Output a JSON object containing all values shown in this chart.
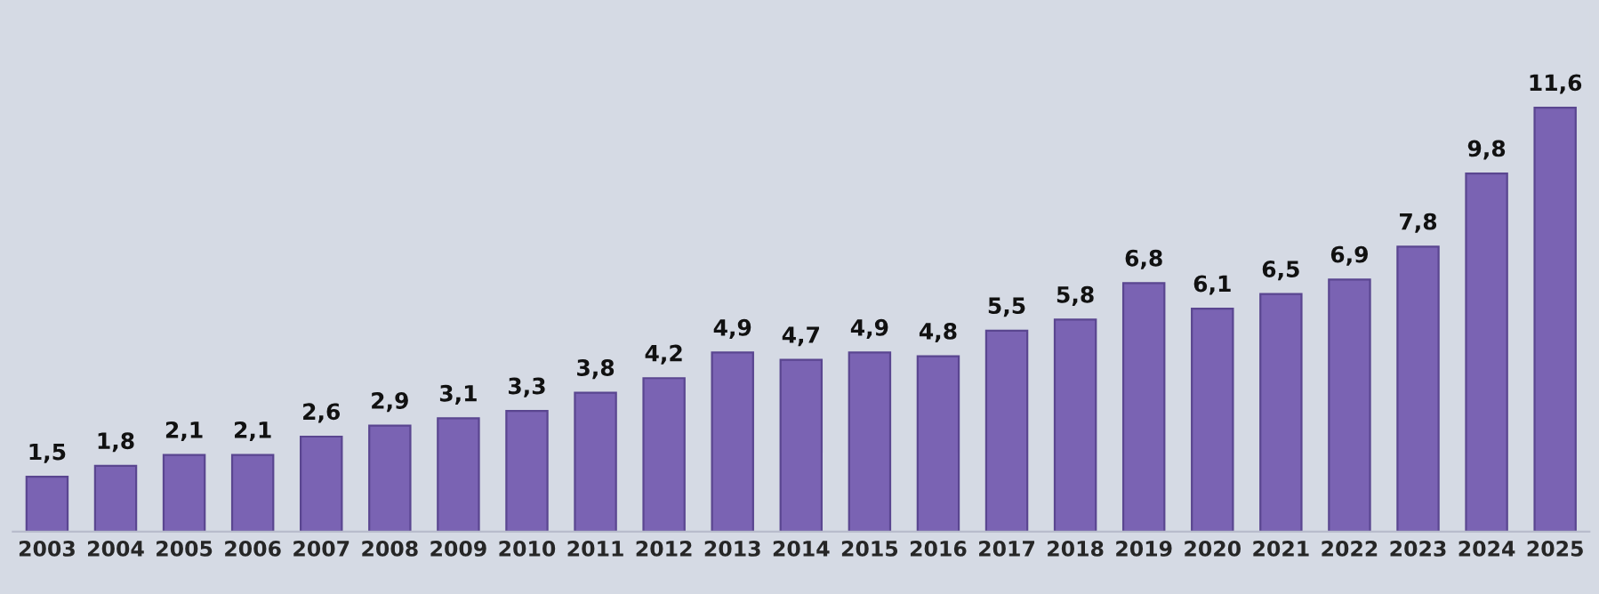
{
  "chart_data": {
    "type": "bar",
    "categories": [
      "2003",
      "2004",
      "2005",
      "2006",
      "2007",
      "2008",
      "2009",
      "2010",
      "2011",
      "2012",
      "2013",
      "2014",
      "2015",
      "2016",
      "2017",
      "2018",
      "2019",
      "2020",
      "2021",
      "2022",
      "2023",
      "2024",
      "2025"
    ],
    "values": [
      1.5,
      1.8,
      2.1,
      2.1,
      2.6,
      2.9,
      3.1,
      3.3,
      3.8,
      4.2,
      4.9,
      4.7,
      4.9,
      4.8,
      5.5,
      5.8,
      6.8,
      6.1,
      6.5,
      6.9,
      7.8,
      9.8,
      11.6
    ],
    "color": "#7a63b3",
    "data_labels": true,
    "value_labels": [
      "1,5",
      "1,8",
      "2,1",
      "2,1",
      "2,6",
      "2,9",
      "3,1",
      "3,3",
      "3,8",
      "4,2",
      "4,9",
      "4,7",
      "4,9",
      "4,8",
      "5,5",
      "5,8",
      "6,8",
      "6,1",
      "6,5",
      "6,9",
      "7,8",
      "9,8",
      "11,6"
    ],
    "tick_labels": "x"
  }
}
